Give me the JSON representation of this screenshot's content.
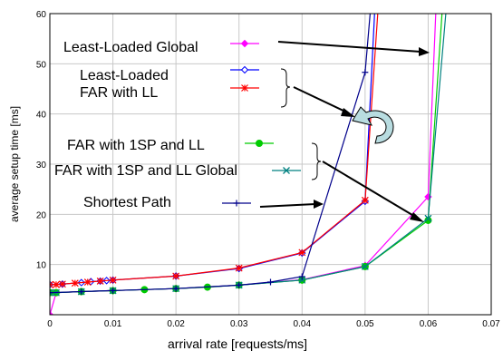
{
  "chart_data": {
    "type": "line",
    "xlabel": "arrival rate [requests/ms]",
    "ylabel": "average setup time [ms]",
    "xlim": [
      0,
      0.07
    ],
    "ylim": [
      0,
      60
    ],
    "x_ticks": [
      "0",
      "0.01",
      "0.02",
      "0.03",
      "0.04",
      "0.05",
      "0.06",
      "0.07"
    ],
    "y_ticks": [
      "10",
      "20",
      "30",
      "40",
      "50",
      "60"
    ],
    "x_tick_values": [
      0,
      0.01,
      0.02,
      0.03,
      0.04,
      0.05,
      0.06,
      0.07
    ],
    "y_tick_values": [
      10,
      20,
      30,
      40,
      50,
      60
    ],
    "grid": true,
    "series": [
      {
        "name": "Least-Loaded Global",
        "color": "#ff00ff",
        "marker": "diamond-filled",
        "points": [
          [
            0.0,
            0.0
          ],
          [
            0.001,
            4.4
          ],
          [
            0.005,
            4.6
          ],
          [
            0.01,
            4.8
          ],
          [
            0.02,
            5.2
          ],
          [
            0.03,
            5.9
          ],
          [
            0.04,
            7.0
          ],
          [
            0.05,
            9.8
          ],
          [
            0.06,
            23.5
          ],
          [
            0.0612,
            60
          ]
        ]
      },
      {
        "name": "Least-Loaded",
        "color": "#0000ff",
        "marker": "diamond-open",
        "points": [
          [
            0.0,
            6.0
          ],
          [
            0.002,
            6.1
          ],
          [
            0.005,
            6.4
          ],
          [
            0.0065,
            6.6
          ],
          [
            0.008,
            6.7
          ],
          [
            0.009,
            6.8
          ],
          [
            0.01,
            6.9
          ],
          [
            0.02,
            7.7
          ],
          [
            0.03,
            9.2
          ],
          [
            0.04,
            12.3
          ],
          [
            0.05,
            22.6
          ],
          [
            0.0515,
            60
          ]
        ]
      },
      {
        "name": "FAR with LL",
        "color": "#ff0000",
        "marker": "asterisk",
        "points": [
          [
            0.0,
            6.0
          ],
          [
            0.001,
            6.0
          ],
          [
            0.002,
            6.1
          ],
          [
            0.004,
            6.3
          ],
          [
            0.006,
            6.5
          ],
          [
            0.008,
            6.7
          ],
          [
            0.01,
            6.9
          ],
          [
            0.02,
            7.7
          ],
          [
            0.03,
            9.3
          ],
          [
            0.04,
            12.4
          ],
          [
            0.05,
            22.8
          ],
          [
            0.052,
            60
          ]
        ]
      },
      {
        "name": "FAR with 1SP and LL",
        "color": "#00cc00",
        "marker": "circle-filled",
        "points": [
          [
            0.0,
            4.4
          ],
          [
            0.001,
            4.4
          ],
          [
            0.005,
            4.6
          ],
          [
            0.01,
            4.8
          ],
          [
            0.015,
            5.0
          ],
          [
            0.02,
            5.2
          ],
          [
            0.025,
            5.5
          ],
          [
            0.03,
            5.9
          ],
          [
            0.04,
            6.9
          ],
          [
            0.05,
            9.6
          ],
          [
            0.06,
            18.8
          ],
          [
            0.0622,
            60
          ]
        ]
      },
      {
        "name": "FAR with 1SP and LL Global",
        "color": "#008080",
        "marker": "x",
        "points": [
          [
            0.0,
            4.4
          ],
          [
            0.001,
            4.4
          ],
          [
            0.005,
            4.6
          ],
          [
            0.01,
            4.8
          ],
          [
            0.02,
            5.2
          ],
          [
            0.03,
            5.9
          ],
          [
            0.04,
            6.9
          ],
          [
            0.05,
            9.6
          ],
          [
            0.06,
            19.2
          ],
          [
            0.0628,
            60
          ]
        ]
      },
      {
        "name": "Shortest Path",
        "color": "#00008b",
        "marker": "plus",
        "points": [
          [
            0.0,
            4.4
          ],
          [
            0.005,
            4.6
          ],
          [
            0.01,
            4.8
          ],
          [
            0.02,
            5.2
          ],
          [
            0.03,
            5.9
          ],
          [
            0.035,
            6.5
          ],
          [
            0.04,
            7.6
          ],
          [
            0.05,
            48.3
          ],
          [
            0.0508,
            60
          ]
        ]
      }
    ]
  }
}
